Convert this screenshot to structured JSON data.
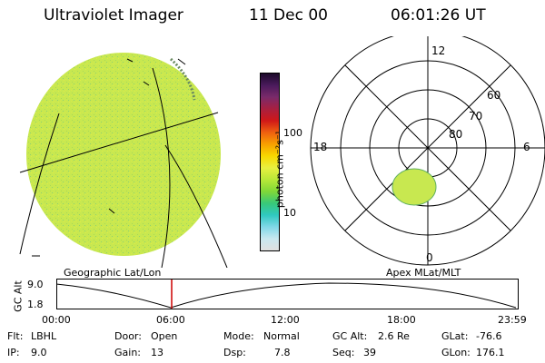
{
  "header": {
    "title": "Ultraviolet Imager",
    "date": "11 Dec 00",
    "time": "06:01:26 UT"
  },
  "colorbar": {
    "unit_label": "photon cm⁻²s⁻¹",
    "ticks": [
      "100",
      "10"
    ],
    "colors": [
      "#1c0a2a",
      "#4a1a5c",
      "#7a2a6a",
      "#a82040",
      "#d01818",
      "#ee6010",
      "#f8a000",
      "#f8d800",
      "#e8f040",
      "#b8e838",
      "#80d838",
      "#38c878",
      "#30c8c0",
      "#80d8e8",
      "#c8e8f0",
      "#e0e0e0"
    ]
  },
  "geo_image": {
    "label": "Geographic Lat/Lon",
    "fill_color": "#c8e850"
  },
  "polar_plot": {
    "label": "Apex MLat/MLT",
    "mlt_labels": {
      "top": "12",
      "left": "18",
      "right": "6",
      "bottom": "0"
    },
    "lat_labels": [
      "60",
      "70",
      "80"
    ],
    "blob_color": "#c8e850"
  },
  "timeline": {
    "axis_label": "GC Alt",
    "y_ticks": [
      "9.0",
      "1.8"
    ],
    "x_ticks": [
      "00:00",
      "06:00",
      "12:00",
      "18:00",
      "23:59"
    ],
    "marker_color": "#cc0000"
  },
  "info": {
    "flt_label": "Flt:",
    "flt_value": "LBHL",
    "ip_label": "IP:",
    "ip_value": "9.0",
    "door_label": "Door:",
    "door_value": "Open",
    "gain_label": "Gain:",
    "gain_value": "13",
    "mode_label": "Mode:",
    "mode_value": "Normal",
    "dsp_label": "Dsp:",
    "dsp_value": "7.8",
    "gcalt_label": "GC Alt:",
    "gcalt_value": "2.6 Re",
    "seq_label": "Seq:",
    "seq_value": "39",
    "glat_label": "GLat:",
    "glat_value": "-76.6",
    "glon_label": "GLon:",
    "glon_value": "176.1"
  }
}
